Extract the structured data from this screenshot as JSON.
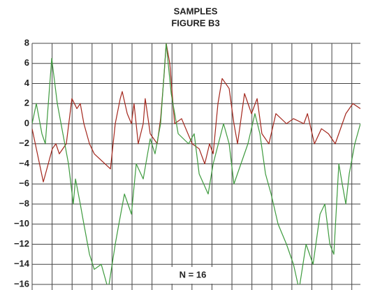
{
  "chart_data": {
    "type": "line",
    "title": "SAMPLES",
    "subtitle": "FIGURE B3",
    "annotation": "N = 16",
    "xlim": [
      0,
      16.43
    ],
    "xticks": [
      0,
      1,
      2,
      3,
      4,
      5,
      6,
      7,
      8,
      9,
      10,
      11,
      12,
      13,
      14,
      15,
      16
    ],
    "ylim": [
      -16,
      8
    ],
    "yticks": [
      {
        "value": -16,
        "label": "−16"
      },
      {
        "value": -14,
        "label": "−14"
      },
      {
        "value": -12,
        "label": "−12"
      },
      {
        "value": -10,
        "label": "−10"
      },
      {
        "value": -8,
        "label": "−8"
      },
      {
        "value": -6,
        "label": "−6"
      },
      {
        "value": -4,
        "label": "−4"
      },
      {
        "value": -2,
        "label": "−2"
      },
      0,
      2,
      4,
      6,
      8
    ],
    "grid": true,
    "series": [
      {
        "color": "#a3261c",
        "x": [
          0,
          0.56,
          1.01,
          1.19,
          1.36,
          1.71,
          1.99,
          2.24,
          2.41,
          2.59,
          2.87,
          3.11,
          3.92,
          4.16,
          4.41,
          4.51,
          4.76,
          4.97,
          5.1,
          5.31,
          5.56,
          5.66,
          5.91,
          6.26,
          6.43,
          6.61,
          6.71,
          6.89,
          7.13,
          7.48,
          8.01,
          8.36,
          8.64,
          8.88,
          9.06,
          9.3,
          9.51,
          9.86,
          10.1,
          10.28,
          10.63,
          10.98,
          11.26,
          11.5,
          11.85,
          12.2,
          12.73,
          13.08,
          13.6,
          13.78,
          14.13,
          14.48,
          14.83,
          15.17,
          15.7,
          16.05,
          16.43
        ],
        "values": [
          -0.5,
          -5.8,
          -2.5,
          -2,
          -3,
          -2,
          2.5,
          1.5,
          2,
          0,
          -2,
          -3,
          -4.5,
          0,
          2.5,
          3.2,
          1,
          0,
          2,
          -2,
          0,
          2.5,
          -1,
          -2,
          0.5,
          5,
          8,
          6,
          0,
          0.5,
          -2,
          -2.5,
          -4,
          -2,
          -3,
          2,
          4.5,
          3.5,
          0,
          -2,
          3,
          1,
          2.5,
          -1,
          -2,
          1,
          0,
          0.5,
          0,
          1,
          -2,
          -0.5,
          -1,
          -2,
          1,
          2,
          1.5
        ]
      },
      {
        "color": "#3d9a3d",
        "x": [
          0,
          0.21,
          0.49,
          0.66,
          0.98,
          1.26,
          1.54,
          1.82,
          2.06,
          2.17,
          2.41,
          2.59,
          2.87,
          3.11,
          3.46,
          3.81,
          4.16,
          4.34,
          4.62,
          4.97,
          5.21,
          5.56,
          5.91,
          6.15,
          6.43,
          6.71,
          6.96,
          7.31,
          7.83,
          8.11,
          8.36,
          8.81,
          9.06,
          9.58,
          9.86,
          10.1,
          10.45,
          10.8,
          11.15,
          11.4,
          11.68,
          11.96,
          12.31,
          12.73,
          13.08,
          13.36,
          13.71,
          14.06,
          14.41,
          14.65,
          14.9,
          15.1,
          15.35,
          15.52,
          15.7,
          15.87,
          16.15,
          16.43
        ],
        "values": [
          0,
          2,
          -1,
          -2,
          6.5,
          2,
          -1,
          -4,
          -8,
          -5.5,
          -8,
          -10,
          -13,
          -14.5,
          -14,
          -16.5,
          -12,
          -10,
          -7,
          -9,
          -4,
          -5.5,
          -1.5,
          -3,
          0,
          8,
          3,
          -1,
          -2,
          -1,
          -5,
          -7,
          -4,
          0,
          -2,
          -6,
          -4,
          -2,
          1,
          -1,
          -5,
          -7,
          -10,
          -12,
          -14,
          -16.5,
          -12,
          -14,
          -9,
          -8,
          -12,
          -13,
          -4,
          -6,
          -8,
          -5,
          -2,
          0
        ]
      }
    ]
  }
}
